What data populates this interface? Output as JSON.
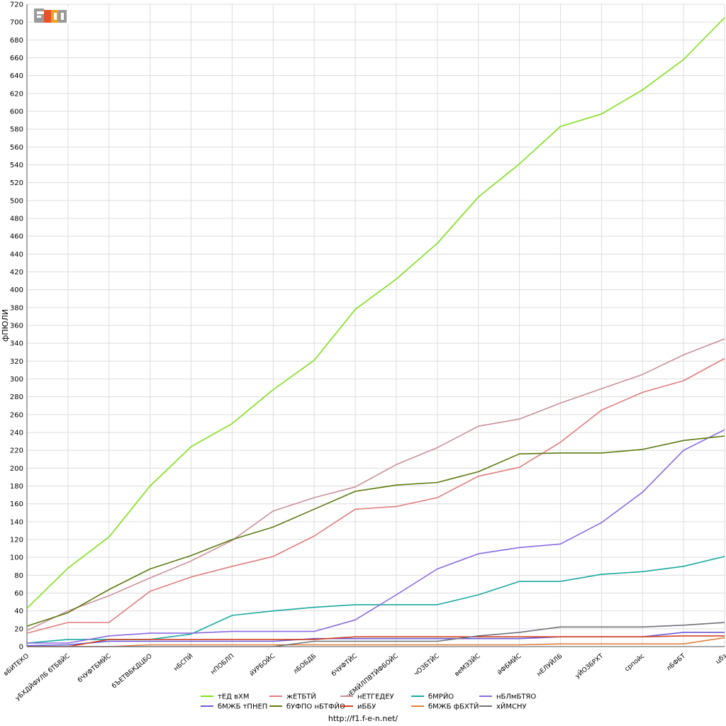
{
  "footer_url": "http://f1.f-e-n.net/",
  "logo": {
    "text": "F1EN",
    "colors": {
      "red": "#e8522a",
      "grey": "#9a9a9a",
      "orange": "#f0a020"
    }
  },
  "chart_data": {
    "type": "line",
    "title": "",
    "xlabel": "",
    "ylabel": "фПЮЛИ",
    "ylim": [
      0,
      720
    ],
    "ytick_step": 20,
    "grid": true,
    "legend_position": "bottom",
    "categories": [
      "вБИТЕКО",
      "уБХДЙФУЛБ бТБВЙС",
      "бЧУФТБМЙС",
      "бЪЕТВБКДЦБО",
      "нБСПЙ",
      "нПОБЛП",
      "йУРБОЙС",
      "лБОБДБ",
      "бЧУФТЙС",
      "чЕМЙЛПВТЙФБОЙС",
      "чОЗБТЙС",
      "веМЭЗЙС",
      "йФБМЙС",
      "нЕЛУЙЛБ",
      "уЙОЗБРХТ",
      "српойс",
      "лБФБТ",
      "цбз"
    ],
    "series": [
      {
        "name": "тЕД вХМ",
        "color": "#7fe01a",
        "values": [
          43,
          88,
          123,
          180,
          224,
          250,
          288,
          321,
          378,
          412,
          452,
          504,
          541,
          583,
          597,
          624,
          658,
          705
        ]
      },
      {
        "name": "жЕТБТЙ",
        "color": "#e07b7b",
        "values": [
          15,
          27,
          27,
          62,
          78,
          90,
          101,
          124,
          154,
          157,
          167,
          191,
          201,
          229,
          265,
          285,
          298,
          323
        ]
      },
      {
        "name": "нЕТГЕДЕУ",
        "color": "#c9909a",
        "values": [
          18,
          40,
          57,
          77,
          96,
          119,
          152,
          167,
          179,
          204,
          223,
          247,
          255,
          273,
          289,
          305,
          327,
          345
        ]
      },
      {
        "name": "бМРЙО",
        "color": "#1aa8a0",
        "values": [
          4,
          8,
          8,
          8,
          14,
          35,
          40,
          44,
          47,
          47,
          47,
          58,
          73,
          73,
          81,
          84,
          90,
          101
        ]
      },
      {
        "name": "нБЛмБТЯО",
        "color": "#8a6ae0",
        "values": [
          4,
          4,
          12,
          15,
          15,
          17,
          17,
          17,
          30,
          58,
          87,
          104,
          111,
          115,
          139,
          173,
          220,
          243
        ]
      },
      {
        "name": "бМЖБ тПНЕП",
        "color": "#6a5ad8",
        "values": [
          1,
          2,
          6,
          6,
          6,
          6,
          6,
          9,
          9,
          9,
          9,
          9,
          9,
          11,
          11,
          11,
          16,
          16
        ]
      },
      {
        "name": "бУФПО нБТФЙО",
        "color": "#5c7a10",
        "values": [
          23,
          38,
          64,
          87,
          102,
          120,
          134,
          154,
          174,
          181,
          184,
          196,
          216,
          217,
          217,
          221,
          231,
          236
        ]
      },
      {
        "name": "иББУ",
        "color": "#d04020",
        "values": [
          0,
          0,
          8,
          8,
          8,
          8,
          8,
          8,
          11,
          11,
          11,
          11,
          11,
          11,
          11,
          11,
          12,
          12
        ]
      },
      {
        "name": "бМЖБ фБХТЙ",
        "color": "#e0803a",
        "values": [
          0,
          0,
          0,
          2,
          2,
          2,
          2,
          2,
          2,
          2,
          2,
          2,
          2,
          3,
          3,
          3,
          3,
          10
        ]
      },
      {
        "name": "хЙМСНУ",
        "color": "#70707a",
        "values": [
          0,
          0,
          0,
          0,
          0,
          0,
          0,
          6,
          6,
          6,
          6,
          12,
          16,
          22,
          22,
          22,
          24,
          27
        ]
      }
    ]
  }
}
